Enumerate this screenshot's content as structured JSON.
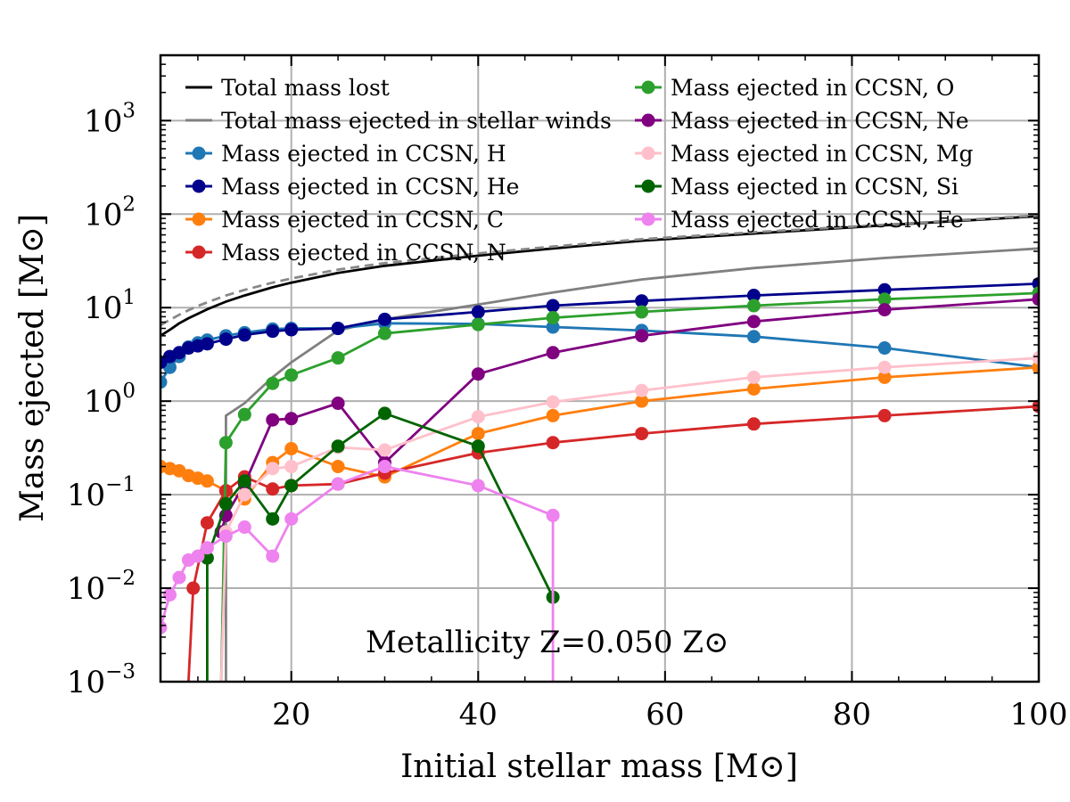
{
  "chart_data": {
    "type": "line",
    "title": "",
    "xlabel": "Initial stellar mass [M⊙]",
    "ylabel": "Mass ejected [M⊙]",
    "xlim": [
      6,
      100
    ],
    "ylim": [
      0.001,
      5000
    ],
    "yscale": "log",
    "grid": true,
    "legend_position": "top-left, two columns",
    "annotation": "Metallicity Z=0.050 Z⊙",
    "x_ticks": [
      20,
      40,
      60,
      80,
      100
    ],
    "y_ticks": [
      {
        "value": 0.001,
        "base": "10",
        "exp": "−3"
      },
      {
        "value": 0.01,
        "base": "10",
        "exp": "−2"
      },
      {
        "value": 0.1,
        "base": "10",
        "exp": "−1"
      },
      {
        "value": 1,
        "base": "10",
        "exp": "0"
      },
      {
        "value": 10,
        "base": "10",
        "exp": "1"
      },
      {
        "value": 100,
        "base": "10",
        "exp": "2"
      },
      {
        "value": 1000,
        "base": "10",
        "exp": "3"
      }
    ],
    "series": [
      {
        "name": "Total mass lost",
        "color": "#000000",
        "style": "line",
        "x": [
          6,
          7,
          8,
          9,
          10,
          11,
          13,
          15,
          18,
          20,
          25,
          30,
          40,
          48,
          57.5,
          69.5,
          83.5,
          100
        ],
        "y": [
          5,
          5.8,
          6.8,
          7.7,
          8.6,
          9.6,
          11.6,
          13.5,
          16.5,
          18.5,
          23.5,
          28,
          36,
          43,
          52,
          62,
          76,
          95
        ]
      },
      {
        "name": "",
        "color": "#888888",
        "style": "dashed",
        "x": [
          6,
          7,
          8,
          9,
          10,
          11,
          13,
          15,
          18,
          20,
          25,
          30,
          40,
          48,
          57.5,
          69.5,
          83.5,
          100
        ],
        "y": [
          6.5,
          7.4,
          8.4,
          9.4,
          10.4,
          11.4,
          13.5,
          15.5,
          18.5,
          20.5,
          25.5,
          30,
          38,
          45,
          54,
          64,
          77,
          97
        ]
      },
      {
        "name": "Total mass ejected in stellar winds",
        "color": "#808080",
        "style": "line",
        "x": [
          13,
          13,
          15,
          18,
          20,
          25,
          30,
          40,
          48,
          57.5,
          69.5,
          83.5,
          100
        ],
        "y": [
          0.001,
          0.7,
          0.95,
          1.8,
          2.6,
          5.7,
          7.5,
          10.8,
          14.5,
          20,
          26.5,
          34,
          43
        ]
      },
      {
        "name": "Mass ejected in CCSN, H",
        "color": "#1f77b4",
        "style": "marker",
        "x": [
          6,
          7,
          8,
          9,
          10,
          11,
          13,
          15,
          18,
          20,
          25,
          30,
          40,
          48,
          57.5,
          69.5,
          83.5,
          100
        ],
        "y": [
          1.6,
          2.3,
          3,
          3.8,
          4.2,
          4.5,
          5,
          5.4,
          5.9,
          6,
          6,
          6.8,
          6.7,
          6.2,
          5.7,
          4.9,
          3.7,
          2.3
        ]
      },
      {
        "name": "Mass ejected in CCSN, He",
        "color": "#00008b",
        "style": "marker",
        "x": [
          6,
          7,
          8,
          9,
          10,
          11,
          13,
          15,
          18,
          20,
          25,
          30,
          40,
          48,
          57.5,
          69.5,
          83.5,
          100
        ],
        "y": [
          2.6,
          3,
          3.3,
          3.7,
          3.9,
          4.1,
          4.6,
          5.1,
          5.6,
          5.8,
          6,
          7.5,
          9,
          10.5,
          11.8,
          13.5,
          15.5,
          18
        ]
      },
      {
        "name": "Mass ejected in CCSN, C",
        "color": "#ff7f0e",
        "style": "marker",
        "x": [
          6,
          7,
          8,
          9,
          10,
          11,
          13,
          15,
          18,
          20,
          25,
          30,
          40,
          48,
          57.5,
          69.5,
          83.5,
          100
        ],
        "y": [
          0.2,
          0.19,
          0.18,
          0.16,
          0.15,
          0.14,
          0.11,
          0.09,
          0.22,
          0.31,
          0.2,
          0.155,
          0.45,
          0.7,
          1,
          1.35,
          1.8,
          2.3
        ]
      },
      {
        "name": "Mass ejected in CCSN, N",
        "color": "#d62728",
        "style": "marker",
        "x": [
          9,
          9.5,
          11,
          13,
          15,
          18,
          20,
          25,
          30,
          40,
          48,
          57.5,
          69.5,
          83.5,
          100
        ],
        "y": [
          0.001,
          0.01,
          0.05,
          0.11,
          0.155,
          0.115,
          0.125,
          0.13,
          0.17,
          0.28,
          0.36,
          0.45,
          0.57,
          0.7,
          0.88
        ]
      },
      {
        "name": "Mass ejected in CCSN, O",
        "color": "#2ca02c",
        "style": "marker",
        "x": [
          12.5,
          13,
          15,
          18,
          20,
          25,
          30,
          40,
          48,
          57.5,
          69.5,
          83.5,
          100
        ],
        "y": [
          0.001,
          0.36,
          0.72,
          1.55,
          1.9,
          2.9,
          5.3,
          6.6,
          7.8,
          9,
          10.5,
          12.3,
          14.3
        ]
      },
      {
        "name": "Mass ejected in CCSN, Ne",
        "color": "#800080",
        "style": "marker",
        "x": [
          12.5,
          13,
          15,
          18,
          20,
          25,
          30,
          40,
          48,
          57.5,
          69.5,
          83.5,
          100
        ],
        "y": [
          0.04,
          0.06,
          0.13,
          0.63,
          0.65,
          0.95,
          0.22,
          1.95,
          3.3,
          5,
          7.1,
          9.5,
          12.3
        ]
      },
      {
        "name": "Mass ejected in CCSN, Mg",
        "color": "#ffc0cb",
        "style": "marker",
        "x": [
          12.5,
          13,
          15,
          18,
          20,
          25,
          30,
          40,
          48,
          57.5,
          69.5,
          83.5,
          100
        ],
        "y": [
          0.001,
          0.04,
          0.1,
          0.19,
          0.2,
          0.32,
          0.3,
          0.68,
          0.98,
          1.3,
          1.8,
          2.3,
          2.9
        ]
      },
      {
        "name": "Mass ejected in CCSN, Si",
        "color": "#006400",
        "style": "marker",
        "x": [
          11,
          11,
          13,
          15,
          18,
          20,
          25,
          30,
          40,
          48
        ],
        "y": [
          0.001,
          0.021,
          0.08,
          0.14,
          0.055,
          0.125,
          0.33,
          0.74,
          0.33,
          0.008
        ]
      },
      {
        "name": "Mass ejected in CCSN, Fe",
        "color": "#ee82ee",
        "style": "marker",
        "x": [
          6,
          7,
          8,
          9,
          10,
          11,
          13,
          15,
          18,
          20,
          25,
          30,
          40,
          48,
          48
        ],
        "y": [
          0.0038,
          0.0085,
          0.013,
          0.02,
          0.022,
          0.027,
          0.036,
          0.045,
          0.022,
          0.055,
          0.13,
          0.2,
          0.125,
          0.06,
          0.001
        ]
      }
    ],
    "legend_left": [
      {
        "label": "Total mass lost",
        "color": "#000000",
        "marker": false
      },
      {
        "label": "Total mass ejected in stellar winds",
        "color": "#808080",
        "marker": false
      },
      {
        "label": "Mass ejected in CCSN, H",
        "color": "#1f77b4",
        "marker": true
      },
      {
        "label": "Mass ejected in CCSN, He",
        "color": "#00008b",
        "marker": true
      },
      {
        "label": "Mass ejected in CCSN, C",
        "color": "#ff7f0e",
        "marker": true
      },
      {
        "label": "Mass ejected in CCSN, N",
        "color": "#d62728",
        "marker": true
      }
    ],
    "legend_right": [
      {
        "label": "Mass ejected in CCSN, O",
        "color": "#2ca02c",
        "marker": true
      },
      {
        "label": "Mass ejected in CCSN, Ne",
        "color": "#800080",
        "marker": true
      },
      {
        "label": "Mass ejected in CCSN, Mg",
        "color": "#ffc0cb",
        "marker": true
      },
      {
        "label": "Mass ejected in CCSN, Si",
        "color": "#006400",
        "marker": true
      },
      {
        "label": "Mass ejected in CCSN, Fe",
        "color": "#ee82ee",
        "marker": true
      }
    ]
  }
}
